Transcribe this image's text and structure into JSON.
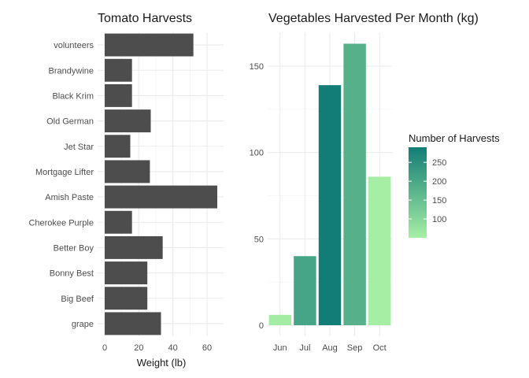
{
  "chart_data": [
    {
      "type": "bar",
      "orientation": "horizontal",
      "title": "Tomato Harvests",
      "xlabel": "Weight (lb)",
      "ylabel": "",
      "xlim": [
        0,
        70
      ],
      "xticks": [
        0,
        20,
        40,
        60
      ],
      "categories": [
        "volunteers",
        "Brandywine",
        "Black Krim",
        "Old German",
        "Jet Star",
        "Mortgage Lifter",
        "Amish Paste",
        "Cherokee Purple",
        "Better Boy",
        "Bonny Best",
        "Big Beef",
        "grape"
      ],
      "values": [
        52,
        16,
        16,
        27,
        15,
        26.5,
        66,
        16,
        34,
        25,
        25,
        33
      ],
      "bar_color": "#4d4d4d",
      "grid": true
    },
    {
      "type": "bar",
      "title": "Vegetables Harvested Per Month (kg)",
      "xlabel": "",
      "ylabel": "",
      "ylim": [
        0,
        165
      ],
      "yticks": [
        0,
        50,
        100,
        150
      ],
      "categories": [
        "Jun",
        "Jul",
        "Aug",
        "Sep",
        "Oct"
      ],
      "values": [
        6,
        40,
        139,
        163,
        86
      ],
      "fill_values": [
        55,
        205,
        290,
        180,
        50
      ],
      "legend": {
        "title": "Number of Harvests",
        "ticks": [
          100,
          150,
          200,
          250
        ],
        "range": [
          50,
          290
        ],
        "color_low": "#a6eea4",
        "color_high": "#127d76",
        "placement": "right"
      },
      "grid": true
    }
  ]
}
